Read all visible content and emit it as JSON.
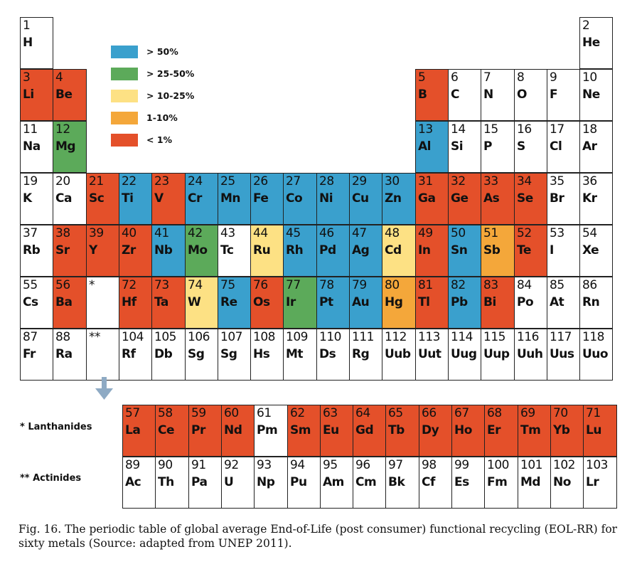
{
  "colors": {
    "above_50": "#3aa0cd",
    "25_50": "#5caa5a",
    "10_25": "#fde184",
    "1_10": "#f4a73a",
    "below_1": "#e4502a",
    "none": "#ffffff"
  },
  "legend": [
    {
      "label": "> 50%",
      "color_key": "above_50"
    },
    {
      "label": "> 25-50%",
      "color_key": "25_50"
    },
    {
      "label": "> 10-25%",
      "color_key": "10_25"
    },
    {
      "label": "1-10%",
      "color_key": "1_10"
    },
    {
      "label": "< 1%",
      "color_key": "below_1"
    }
  ],
  "series_labels": {
    "lanthanides": "* Lanthanides",
    "actinides": "** Actinides"
  },
  "caption": "Fig. 16. The periodic table of global average End-of-Life (post consumer) functional recycling (EOL-RR) for sixty metals (Source: adapted from UNEP 2011).",
  "elements": [
    {
      "num": "1",
      "sym": "H",
      "row": 1,
      "col": 1,
      "cls": "none"
    },
    {
      "num": "2",
      "sym": "He",
      "row": 1,
      "col": 18,
      "cls": "none"
    },
    {
      "num": "3",
      "sym": "Li",
      "row": 2,
      "col": 1,
      "cls": "below_1"
    },
    {
      "num": "4",
      "sym": "Be",
      "row": 2,
      "col": 2,
      "cls": "below_1"
    },
    {
      "num": "5",
      "sym": "B",
      "row": 2,
      "col": 13,
      "cls": "below_1"
    },
    {
      "num": "6",
      "sym": "C",
      "row": 2,
      "col": 14,
      "cls": "none"
    },
    {
      "num": "7",
      "sym": "N",
      "row": 2,
      "col": 15,
      "cls": "none"
    },
    {
      "num": "8",
      "sym": "O",
      "row": 2,
      "col": 16,
      "cls": "none"
    },
    {
      "num": "9",
      "sym": "F",
      "row": 2,
      "col": 17,
      "cls": "none"
    },
    {
      "num": "10",
      "sym": "Ne",
      "row": 2,
      "col": 18,
      "cls": "none"
    },
    {
      "num": "11",
      "sym": "Na",
      "row": 3,
      "col": 1,
      "cls": "none"
    },
    {
      "num": "12",
      "sym": "Mg",
      "row": 3,
      "col": 2,
      "cls": "25_50"
    },
    {
      "num": "13",
      "sym": "Al",
      "row": 3,
      "col": 13,
      "cls": "above_50"
    },
    {
      "num": "14",
      "sym": "Si",
      "row": 3,
      "col": 14,
      "cls": "none"
    },
    {
      "num": "15",
      "sym": "P",
      "row": 3,
      "col": 15,
      "cls": "none"
    },
    {
      "num": "16",
      "sym": "S",
      "row": 3,
      "col": 16,
      "cls": "none"
    },
    {
      "num": "17",
      "sym": "Cl",
      "row": 3,
      "col": 17,
      "cls": "none"
    },
    {
      "num": "18",
      "sym": "Ar",
      "row": 3,
      "col": 18,
      "cls": "none"
    },
    {
      "num": "19",
      "sym": "K",
      "row": 4,
      "col": 1,
      "cls": "none"
    },
    {
      "num": "20",
      "sym": "Ca",
      "row": 4,
      "col": 2,
      "cls": "none"
    },
    {
      "num": "21",
      "sym": "Sc",
      "row": 4,
      "col": 3,
      "cls": "below_1"
    },
    {
      "num": "22",
      "sym": "Ti",
      "row": 4,
      "col": 4,
      "cls": "above_50"
    },
    {
      "num": "23",
      "sym": "V",
      "row": 4,
      "col": 5,
      "cls": "below_1"
    },
    {
      "num": "24",
      "sym": "Cr",
      "row": 4,
      "col": 6,
      "cls": "above_50"
    },
    {
      "num": "25",
      "sym": "Mn",
      "row": 4,
      "col": 7,
      "cls": "above_50"
    },
    {
      "num": "26",
      "sym": "Fe",
      "row": 4,
      "col": 8,
      "cls": "above_50"
    },
    {
      "num": "27",
      "sym": "Co",
      "row": 4,
      "col": 9,
      "cls": "above_50"
    },
    {
      "num": "28",
      "sym": "Ni",
      "row": 4,
      "col": 10,
      "cls": "above_50"
    },
    {
      "num": "29",
      "sym": "Cu",
      "row": 4,
      "col": 11,
      "cls": "above_50"
    },
    {
      "num": "30",
      "sym": "Zn",
      "row": 4,
      "col": 12,
      "cls": "above_50"
    },
    {
      "num": "31",
      "sym": "Ga",
      "row": 4,
      "col": 13,
      "cls": "below_1"
    },
    {
      "num": "32",
      "sym": "Ge",
      "row": 4,
      "col": 14,
      "cls": "below_1"
    },
    {
      "num": "33",
      "sym": "As",
      "row": 4,
      "col": 15,
      "cls": "below_1"
    },
    {
      "num": "34",
      "sym": "Se",
      "row": 4,
      "col": 16,
      "cls": "below_1"
    },
    {
      "num": "35",
      "sym": "Br",
      "row": 4,
      "col": 17,
      "cls": "none"
    },
    {
      "num": "36",
      "sym": "Kr",
      "row": 4,
      "col": 18,
      "cls": "none"
    },
    {
      "num": "37",
      "sym": "Rb",
      "row": 5,
      "col": 1,
      "cls": "none"
    },
    {
      "num": "38",
      "sym": "Sr",
      "row": 5,
      "col": 2,
      "cls": "below_1"
    },
    {
      "num": "39",
      "sym": "Y",
      "row": 5,
      "col": 3,
      "cls": "below_1"
    },
    {
      "num": "40",
      "sym": "Zr",
      "row": 5,
      "col": 4,
      "cls": "below_1"
    },
    {
      "num": "41",
      "sym": "Nb",
      "row": 5,
      "col": 5,
      "cls": "above_50"
    },
    {
      "num": "42",
      "sym": "Mo",
      "row": 5,
      "col": 6,
      "cls": "25_50"
    },
    {
      "num": "43",
      "sym": "Tc",
      "row": 5,
      "col": 7,
      "cls": "none"
    },
    {
      "num": "44",
      "sym": "Ru",
      "row": 5,
      "col": 8,
      "cls": "10_25"
    },
    {
      "num": "45",
      "sym": "Rh",
      "row": 5,
      "col": 9,
      "cls": "above_50"
    },
    {
      "num": "46",
      "sym": "Pd",
      "row": 5,
      "col": 10,
      "cls": "above_50"
    },
    {
      "num": "47",
      "sym": "Ag",
      "row": 5,
      "col": 11,
      "cls": "above_50"
    },
    {
      "num": "48",
      "sym": "Cd",
      "row": 5,
      "col": 12,
      "cls": "10_25"
    },
    {
      "num": "49",
      "sym": "In",
      "row": 5,
      "col": 13,
      "cls": "below_1"
    },
    {
      "num": "50",
      "sym": "Sn",
      "row": 5,
      "col": 14,
      "cls": "above_50"
    },
    {
      "num": "51",
      "sym": "Sb",
      "row": 5,
      "col": 15,
      "cls": "1_10"
    },
    {
      "num": "52",
      "sym": "Te",
      "row": 5,
      "col": 16,
      "cls": "below_1"
    },
    {
      "num": "53",
      "sym": "I",
      "row": 5,
      "col": 17,
      "cls": "none"
    },
    {
      "num": "54",
      "sym": "Xe",
      "row": 5,
      "col": 18,
      "cls": "none"
    },
    {
      "num": "55",
      "sym": "Cs",
      "row": 6,
      "col": 1,
      "cls": "none"
    },
    {
      "num": "56",
      "sym": "Ba",
      "row": 6,
      "col": 2,
      "cls": "below_1"
    },
    {
      "num": "*",
      "sym": "",
      "row": 6,
      "col": 3,
      "cls": "none"
    },
    {
      "num": "72",
      "sym": "Hf",
      "row": 6,
      "col": 4,
      "cls": "below_1"
    },
    {
      "num": "73",
      "sym": "Ta",
      "row": 6,
      "col": 5,
      "cls": "below_1"
    },
    {
      "num": "74",
      "sym": "W",
      "row": 6,
      "col": 6,
      "cls": "10_25"
    },
    {
      "num": "75",
      "sym": "Re",
      "row": 6,
      "col": 7,
      "cls": "above_50"
    },
    {
      "num": "76",
      "sym": "Os",
      "row": 6,
      "col": 8,
      "cls": "below_1"
    },
    {
      "num": "77",
      "sym": "Ir",
      "row": 6,
      "col": 9,
      "cls": "25_50"
    },
    {
      "num": "78",
      "sym": "Pt",
      "row": 6,
      "col": 10,
      "cls": "above_50"
    },
    {
      "num": "79",
      "sym": "Au",
      "row": 6,
      "col": 11,
      "cls": "above_50"
    },
    {
      "num": "80",
      "sym": "Hg",
      "row": 6,
      "col": 12,
      "cls": "1_10"
    },
    {
      "num": "81",
      "sym": "Tl",
      "row": 6,
      "col": 13,
      "cls": "below_1"
    },
    {
      "num": "82",
      "sym": "Pb",
      "row": 6,
      "col": 14,
      "cls": "above_50"
    },
    {
      "num": "83",
      "sym": "Bi",
      "row": 6,
      "col": 15,
      "cls": "below_1"
    },
    {
      "num": "84",
      "sym": "Po",
      "row": 6,
      "col": 16,
      "cls": "none"
    },
    {
      "num": "85",
      "sym": "At",
      "row": 6,
      "col": 17,
      "cls": "none"
    },
    {
      "num": "86",
      "sym": "Rn",
      "row": 6,
      "col": 18,
      "cls": "none"
    },
    {
      "num": "87",
      "sym": "Fr",
      "row": 7,
      "col": 1,
      "cls": "none"
    },
    {
      "num": "88",
      "sym": "Ra",
      "row": 7,
      "col": 2,
      "cls": "none"
    },
    {
      "num": "**",
      "sym": "",
      "row": 7,
      "col": 3,
      "cls": "none"
    },
    {
      "num": "104",
      "sym": "Rf",
      "row": 7,
      "col": 4,
      "cls": "none"
    },
    {
      "num": "105",
      "sym": "Db",
      "row": 7,
      "col": 5,
      "cls": "none"
    },
    {
      "num": "106",
      "sym": "Sg",
      "row": 7,
      "col": 6,
      "cls": "none"
    },
    {
      "num": "107",
      "sym": "Sg",
      "row": 7,
      "col": 7,
      "cls": "none"
    },
    {
      "num": "108",
      "sym": "Hs",
      "row": 7,
      "col": 8,
      "cls": "none"
    },
    {
      "num": "109",
      "sym": "Mt",
      "row": 7,
      "col": 9,
      "cls": "none"
    },
    {
      "num": "110",
      "sym": "Ds",
      "row": 7,
      "col": 10,
      "cls": "none"
    },
    {
      "num": "111",
      "sym": "Rg",
      "row": 7,
      "col": 11,
      "cls": "none"
    },
    {
      "num": "112",
      "sym": "Uub",
      "row": 7,
      "col": 12,
      "cls": "none"
    },
    {
      "num": "113",
      "sym": "Uut",
      "row": 7,
      "col": 13,
      "cls": "none"
    },
    {
      "num": "114",
      "sym": "Uug",
      "row": 7,
      "col": 14,
      "cls": "none"
    },
    {
      "num": "115",
      "sym": "Uup",
      "row": 7,
      "col": 15,
      "cls": "none"
    },
    {
      "num": "116",
      "sym": "Uuh",
      "row": 7,
      "col": 16,
      "cls": "none"
    },
    {
      "num": "117",
      "sym": "Uus",
      "row": 7,
      "col": 17,
      "cls": "none"
    },
    {
      "num": "118",
      "sym": "Uuo",
      "row": 7,
      "col": 18,
      "cls": "none"
    }
  ],
  "lanthanides": [
    {
      "num": "57",
      "sym": "La",
      "cls": "below_1"
    },
    {
      "num": "58",
      "sym": "Ce",
      "cls": "below_1"
    },
    {
      "num": "59",
      "sym": "Pr",
      "cls": "below_1"
    },
    {
      "num": "60",
      "sym": "Nd",
      "cls": "below_1"
    },
    {
      "num": "61",
      "sym": "Pm",
      "cls": "none"
    },
    {
      "num": "62",
      "sym": "Sm",
      "cls": "below_1"
    },
    {
      "num": "63",
      "sym": "Eu",
      "cls": "below_1"
    },
    {
      "num": "64",
      "sym": "Gd",
      "cls": "below_1"
    },
    {
      "num": "65",
      "sym": "Tb",
      "cls": "below_1"
    },
    {
      "num": "66",
      "sym": "Dy",
      "cls": "below_1"
    },
    {
      "num": "67",
      "sym": "Ho",
      "cls": "below_1"
    },
    {
      "num": "68",
      "sym": "Er",
      "cls": "below_1"
    },
    {
      "num": "69",
      "sym": "Tm",
      "cls": "below_1"
    },
    {
      "num": "70",
      "sym": "Yb",
      "cls": "below_1"
    },
    {
      "num": "71",
      "sym": "Lu",
      "cls": "below_1"
    }
  ],
  "actinides": [
    {
      "num": "89",
      "sym": "Ac",
      "cls": "none"
    },
    {
      "num": "90",
      "sym": "Th",
      "cls": "none"
    },
    {
      "num": "91",
      "sym": "Pa",
      "cls": "none"
    },
    {
      "num": "92",
      "sym": "U",
      "cls": "none"
    },
    {
      "num": "93",
      "sym": "Np",
      "cls": "none"
    },
    {
      "num": "94",
      "sym": "Pu",
      "cls": "none"
    },
    {
      "num": "95",
      "sym": "Am",
      "cls": "none"
    },
    {
      "num": "96",
      "sym": "Cm",
      "cls": "none"
    },
    {
      "num": "97",
      "sym": "Bk",
      "cls": "none"
    },
    {
      "num": "98",
      "sym": "Cf",
      "cls": "none"
    },
    {
      "num": "99",
      "sym": "Es",
      "cls": "none"
    },
    {
      "num": "100",
      "sym": "Fm",
      "cls": "none"
    },
    {
      "num": "101",
      "sym": "Md",
      "cls": "none"
    },
    {
      "num": "102",
      "sym": "No",
      "cls": "none"
    },
    {
      "num": "103",
      "sym": "Lr",
      "cls": "none"
    }
  ]
}
